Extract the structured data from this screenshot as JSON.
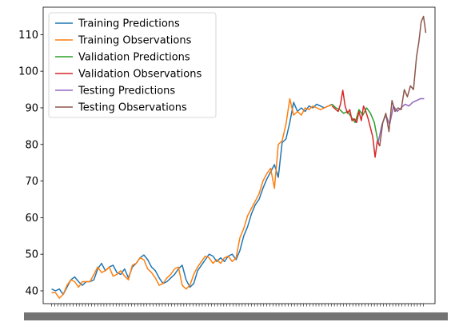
{
  "chart_data": {
    "type": "line",
    "title": "",
    "xlabel": "",
    "ylabel": "",
    "ylim": [
      36.5,
      117.5
    ],
    "yticks": [
      40,
      50,
      60,
      70,
      80,
      90,
      100,
      110
    ],
    "xlim": [
      -11,
      499
    ],
    "grid": false,
    "legend": "top-left",
    "series": [
      {
        "name": "Training Predictions",
        "color": "#1f77b4",
        "x": [
          0,
          5,
          10,
          15,
          20,
          25,
          30,
          35,
          40,
          45,
          50,
          55,
          60,
          65,
          70,
          75,
          80,
          85,
          90,
          95,
          100,
          105,
          110,
          115,
          120,
          125,
          130,
          135,
          140,
          145,
          150,
          155,
          160,
          165,
          170,
          175,
          180,
          185,
          190,
          195,
          200,
          205,
          210,
          215,
          220,
          225,
          230,
          235,
          240,
          245,
          250,
          255,
          260,
          265,
          270,
          275,
          280,
          285,
          290,
          295,
          300,
          305,
          310,
          315,
          320,
          325,
          330,
          335,
          340,
          345,
          350,
          355,
          360,
          365
        ],
        "y": [
          40.5,
          40.0,
          40.5,
          39.0,
          41.0,
          43.0,
          43.8,
          42.5,
          41.5,
          42.5,
          42.5,
          43.0,
          46.0,
          47.5,
          45.5,
          46.5,
          47.0,
          45.0,
          44.5,
          46.0,
          43.5,
          46.5,
          47.5,
          49.0,
          49.8,
          48.5,
          46.5,
          45.5,
          43.5,
          42.0,
          42.5,
          43.5,
          44.5,
          46.0,
          47.0,
          43.0,
          41.0,
          42.0,
          45.5,
          47.0,
          48.5,
          50.0,
          49.5,
          48.0,
          49.0,
          48.0,
          49.5,
          50.0,
          48.5,
          51.0,
          55.0,
          57.5,
          61.0,
          63.5,
          65.0,
          68.0,
          70.5,
          72.5,
          74.5,
          71.0,
          80.5,
          81.5,
          86.0,
          91.5,
          89.0,
          90.0,
          89.0,
          90.5,
          90.0,
          91.0,
          90.5,
          90.0,
          90.5,
          91.0
        ]
      },
      {
        "name": "Training Observations",
        "color": "#ff7f0e",
        "x": [
          0,
          5,
          10,
          15,
          20,
          25,
          30,
          35,
          40,
          45,
          50,
          55,
          60,
          65,
          70,
          75,
          80,
          85,
          90,
          95,
          100,
          105,
          110,
          115,
          120,
          125,
          130,
          135,
          140,
          145,
          150,
          155,
          160,
          165,
          170,
          175,
          180,
          185,
          190,
          195,
          200,
          205,
          210,
          215,
          220,
          225,
          230,
          235,
          240,
          245,
          250,
          255,
          260,
          265,
          270,
          275,
          280,
          285,
          290,
          295,
          300,
          305,
          310,
          315,
          320,
          325,
          330,
          335,
          340,
          345,
          350,
          355,
          360,
          365
        ],
        "y": [
          39.5,
          39.5,
          38.0,
          39.0,
          41.5,
          43.0,
          42.5,
          41.0,
          42.5,
          42.5,
          42.5,
          44.5,
          46.5,
          45.0,
          45.5,
          46.5,
          44.0,
          44.5,
          45.5,
          44.0,
          43.0,
          47.0,
          47.5,
          49.0,
          48.5,
          46.0,
          45.0,
          43.5,
          41.5,
          42.0,
          43.5,
          44.5,
          46.0,
          46.5,
          41.5,
          40.5,
          41.5,
          44.5,
          46.5,
          48.0,
          49.5,
          49.0,
          47.5,
          48.5,
          47.5,
          49.0,
          49.5,
          48.0,
          49.0,
          54.5,
          57.0,
          60.5,
          62.5,
          64.5,
          66.5,
          70.0,
          72.0,
          73.5,
          68.0,
          80.0,
          81.0,
          85.5,
          92.5,
          88.0,
          89.0,
          88.0,
          90.0,
          89.5,
          90.5,
          90.0,
          89.5,
          90.0,
          90.5,
          90.8
        ]
      },
      {
        "name": "Validation Predictions",
        "color": "#2ca02c",
        "x": [
          365,
          370,
          375,
          380,
          385,
          390,
          395,
          400,
          405,
          410,
          415,
          420,
          425
        ],
        "y": [
          91.0,
          90.0,
          89.5,
          88.5,
          89.0,
          87.5,
          86.0,
          89.5,
          88.0,
          90.0,
          88.5,
          86.0,
          80.5
        ]
      },
      {
        "name": "Validation Observations",
        "color": "#d62728",
        "x": [
          365,
          370,
          373,
          376,
          379,
          382,
          385,
          388,
          391,
          394,
          397,
          400,
          403,
          406,
          409,
          412,
          415,
          418,
          421,
          424,
          427
        ],
        "y": [
          90.5,
          89.5,
          89.0,
          91.0,
          94.8,
          90.5,
          88.5,
          89.5,
          86.5,
          87.0,
          86.0,
          89.0,
          86.5,
          90.5,
          89.0,
          87.0,
          84.5,
          82.0,
          76.5,
          81.0,
          79.5
        ]
      },
      {
        "name": "Testing Predictions",
        "color": "#9467bd",
        "x": [
          425,
          430,
          435,
          440,
          445,
          450,
          455,
          460,
          465,
          470,
          475,
          480,
          485
        ],
        "y": [
          80.5,
          85.5,
          88.0,
          85.5,
          90.5,
          89.0,
          90.0,
          91.0,
          90.5,
          91.5,
          92.0,
          92.5,
          92.5
        ]
      },
      {
        "name": "Testing Observations",
        "color": "#8c564b",
        "x": [
          427,
          431,
          435,
          439,
          443,
          447,
          451,
          455,
          459,
          463,
          467,
          471,
          475,
          478,
          481,
          484,
          487
        ],
        "y": [
          79.5,
          86.0,
          88.5,
          83.5,
          92.0,
          89.0,
          90.0,
          89.5,
          95.0,
          93.0,
          96.0,
          95.0,
          104.0,
          108.0,
          113.5,
          115.0,
          110.5
        ]
      }
    ]
  }
}
